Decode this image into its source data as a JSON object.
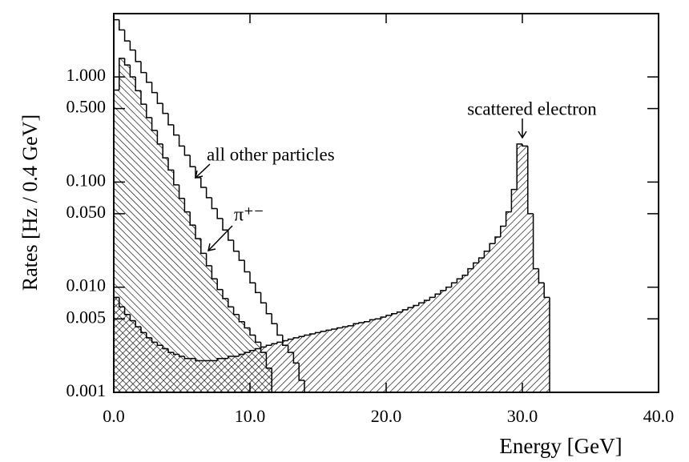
{
  "chart_data": {
    "type": "histogram",
    "y_label": "Rates [Hz / 0.4 GeV]",
    "x_label": "Energy [GeV]",
    "log_y": true,
    "xlim": [
      0,
      40
    ],
    "ylim": [
      0.001,
      4
    ],
    "xticks": [
      {
        "value": 0,
        "label": "0.0"
      },
      {
        "value": 10,
        "label": "10.0"
      },
      {
        "value": 20,
        "label": "20.0"
      },
      {
        "value": 30,
        "label": "30.0"
      },
      {
        "value": 40,
        "label": "40.0"
      }
    ],
    "yticks": [
      0.001,
      0.005,
      {
        "value": 0.01,
        "label": "0.010"
      },
      {
        "value": 0.05,
        "label": "0.050"
      },
      {
        "value": 0.1,
        "label": "0.100"
      },
      {
        "value": 0.5,
        "label": "0.500"
      },
      {
        "value": 1,
        "label": "1.000"
      }
    ],
    "bins": [
      0,
      0.4,
      0.8,
      1.2,
      1.6,
      2,
      2.4,
      2.8,
      3.2,
      3.6,
      4,
      4.4,
      4.8,
      5.2,
      5.6,
      6,
      6.4,
      6.8,
      7.2,
      7.6,
      8,
      8.4,
      8.8,
      9.2,
      9.6,
      10,
      10.4,
      10.8,
      11.2,
      11.6,
      12,
      12.4,
      12.8,
      13.2,
      13.6,
      14,
      14.4,
      14.8,
      15.2,
      15.6,
      16,
      16.4,
      16.8,
      17.2,
      17.6,
      18,
      18.4,
      18.8,
      19.2,
      19.6,
      20,
      20.4,
      20.8,
      21.2,
      21.6,
      22,
      22.4,
      22.8,
      23.2,
      23.6,
      24,
      24.4,
      24.8,
      25.2,
      25.6,
      26,
      26.4,
      26.8,
      27.2,
      27.6,
      28,
      28.4,
      28.8,
      29.2,
      29.6,
      30,
      30.4,
      30.8,
      31.2,
      31.6,
      32
    ],
    "series": [
      {
        "name": "scattered electron",
        "color": "#000000",
        "hatch": "/",
        "values": [
          0.008,
          0.0065,
          0.0055,
          0.0048,
          0.0042,
          0.0037,
          0.0033,
          0.003,
          0.0028,
          0.0026,
          0.0024,
          0.0023,
          0.0022,
          0.0021,
          0.0021,
          0.002,
          0.002,
          0.002,
          0.002,
          0.0021,
          0.0021,
          0.0022,
          0.0022,
          0.0023,
          0.0024,
          0.0025,
          0.0026,
          0.0027,
          0.0028,
          0.0029,
          0.003,
          0.0031,
          0.0032,
          0.0033,
          0.0034,
          0.0035,
          0.0036,
          0.0037,
          0.0038,
          0.0039,
          0.004,
          0.0041,
          0.0042,
          0.0043,
          0.0045,
          0.0046,
          0.0047,
          0.0049,
          0.005,
          0.0052,
          0.0054,
          0.0056,
          0.0058,
          0.0061,
          0.0064,
          0.0067,
          0.0071,
          0.0075,
          0.008,
          0.0086,
          0.0093,
          0.01,
          0.011,
          0.012,
          0.013,
          0.015,
          0.017,
          0.019,
          0.022,
          0.026,
          0.03,
          0.038,
          0.052,
          0.085,
          0.23,
          0.22,
          0.05,
          0.015,
          0.011,
          0.008
        ]
      },
      {
        "name": "π⁺⁻",
        "color": "#000000",
        "hatch": "\\",
        "values": [
          0.75,
          1.5,
          1.3,
          1.0,
          0.74,
          0.55,
          0.41,
          0.31,
          0.23,
          0.17,
          0.13,
          0.094,
          0.07,
          0.052,
          0.039,
          0.029,
          0.021,
          0.016,
          0.012,
          0.0095,
          0.0078,
          0.0065,
          0.0055,
          0.0047,
          0.0041,
          0.0035,
          0.003,
          0.0024,
          0.0017,
          null,
          null,
          null,
          null,
          null,
          null,
          null,
          null,
          null,
          null,
          null,
          null,
          null,
          null,
          null,
          null,
          null,
          null,
          null,
          null,
          null,
          null,
          null,
          null,
          null,
          null,
          null,
          null,
          null,
          null,
          null,
          null,
          null,
          null,
          null,
          null,
          null,
          null,
          null,
          null,
          null,
          null,
          null,
          null,
          null,
          null,
          null,
          null,
          null,
          null,
          null
        ]
      },
      {
        "name": "all other particles",
        "color": "#000000",
        "hatch": "none",
        "values": [
          3.5,
          2.8,
          2.2,
          1.8,
          1.4,
          1.1,
          0.89,
          0.71,
          0.56,
          0.45,
          0.35,
          0.28,
          0.22,
          0.18,
          0.14,
          0.11,
          0.089,
          0.071,
          0.056,
          0.045,
          0.035,
          0.028,
          0.022,
          0.018,
          0.014,
          0.011,
          0.0089,
          0.0071,
          0.0056,
          0.0045,
          0.0035,
          0.0028,
          0.0024,
          0.0019,
          0.0013,
          null,
          null,
          null,
          null,
          null,
          null,
          null,
          null,
          null,
          null,
          null,
          null,
          null,
          null,
          null,
          null,
          null,
          null,
          null,
          null,
          null,
          null,
          null,
          null,
          null,
          null,
          null,
          null,
          null,
          null,
          null,
          null,
          null,
          null,
          null,
          null,
          null,
          null,
          null,
          null,
          null,
          null,
          null,
          null,
          null
        ]
      }
    ]
  }
}
